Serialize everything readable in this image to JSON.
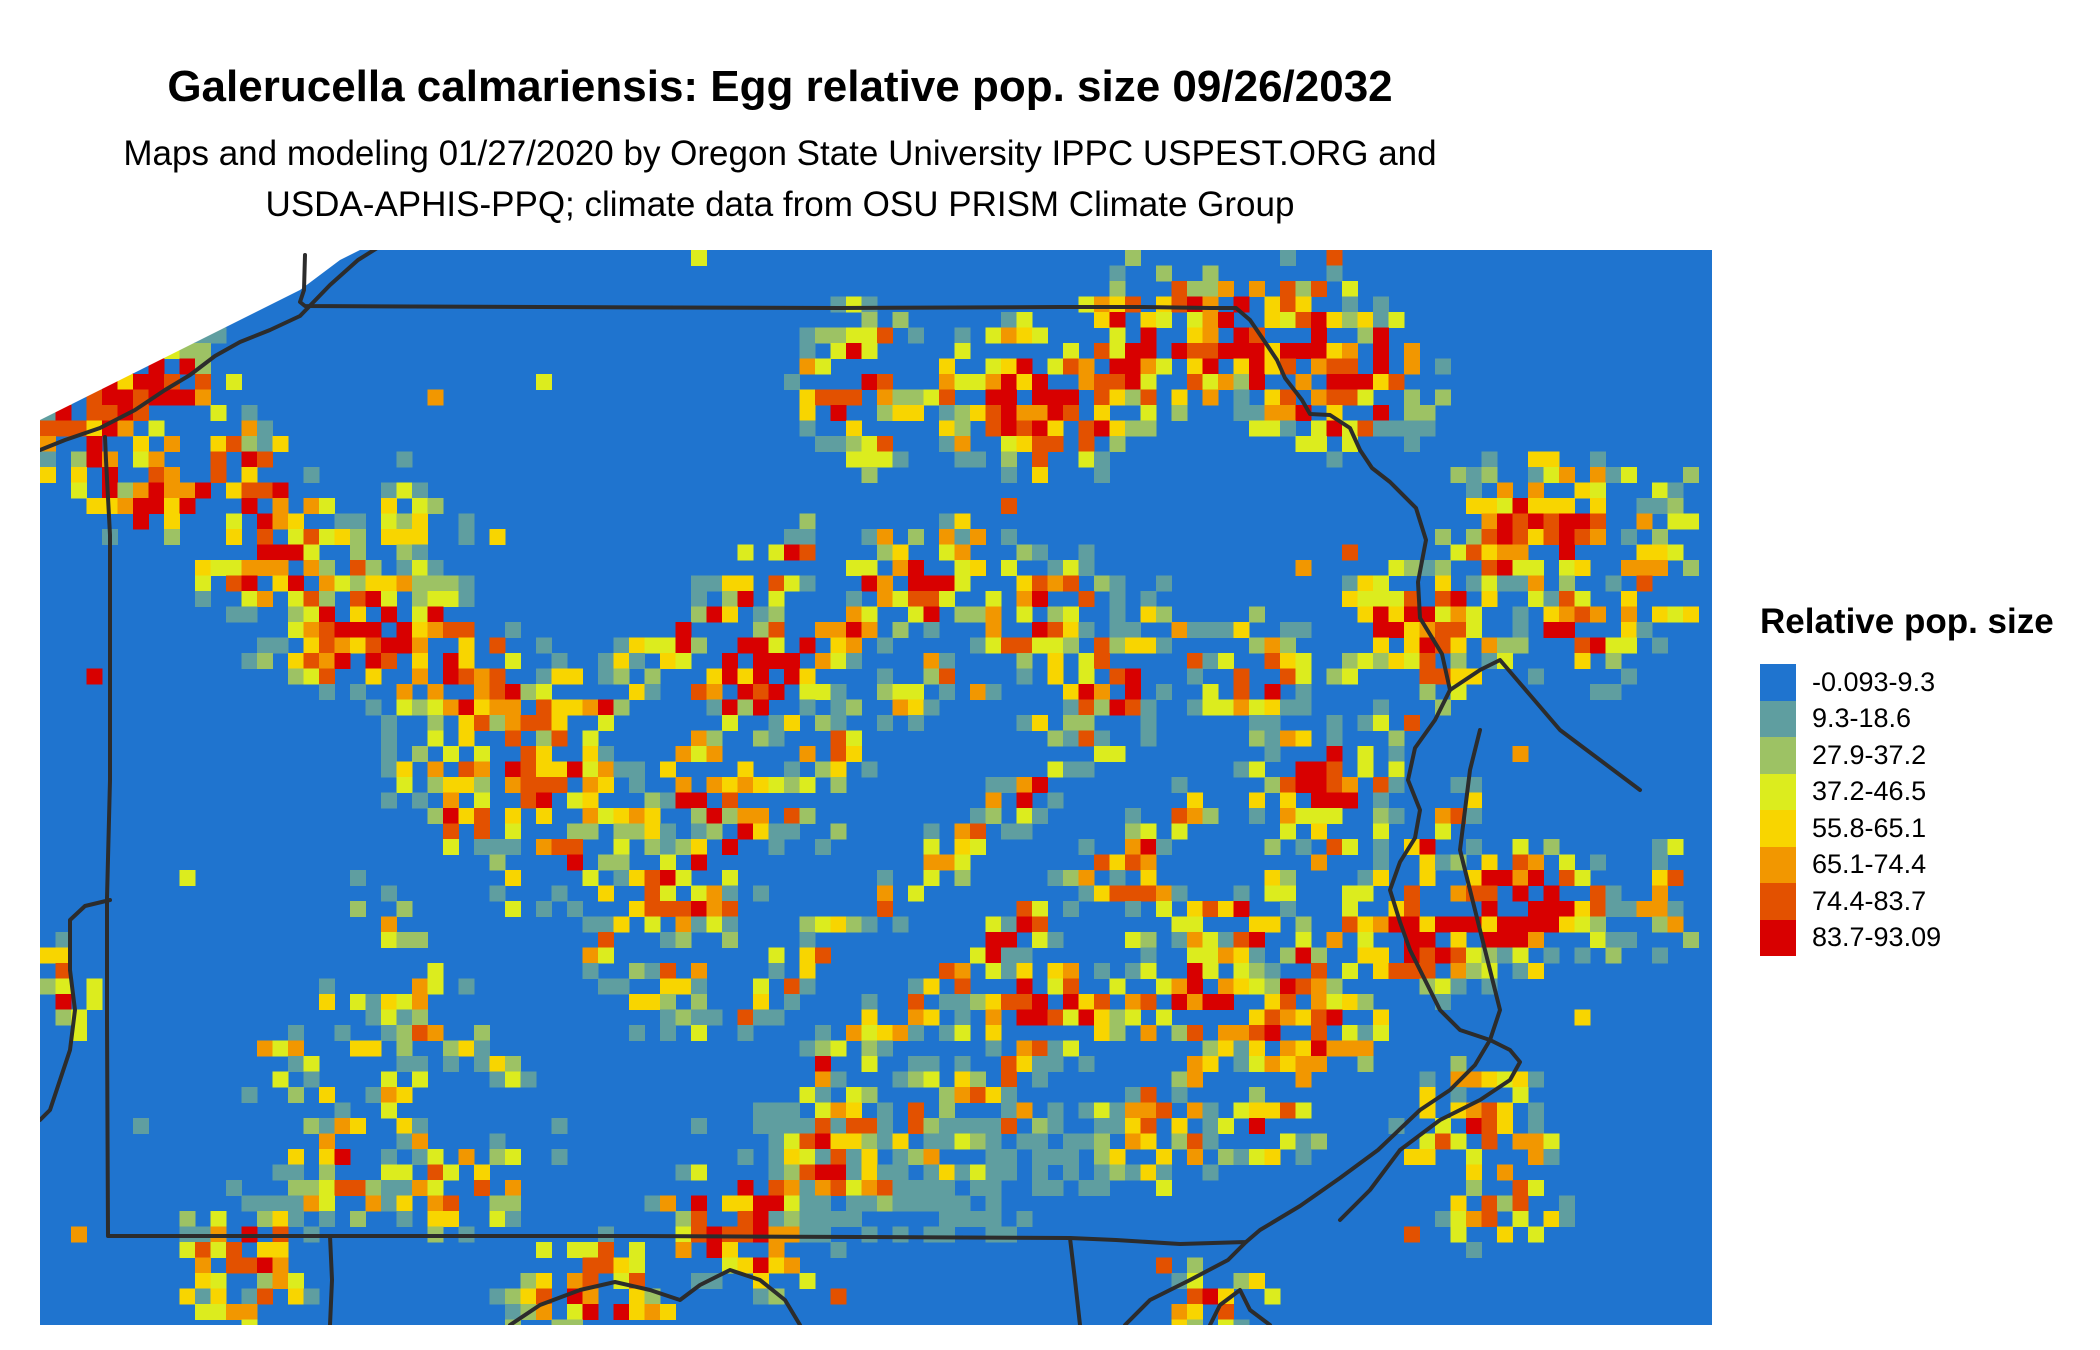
{
  "title": "Galerucella calmariensis: Egg relative pop. size 09/26/2032",
  "subtitle_lines": [
    "Maps and modeling 01/27/2020 by Oregon State University IPPC USPEST.ORG and",
    "USDA-APHIS-PPQ; climate data from OSU PRISM Climate Group"
  ],
  "legend": {
    "title": "Relative pop. size",
    "classes": [
      {
        "label": "-0.093-9.3",
        "color": "#1f74cf"
      },
      {
        "label": "9.3-18.6",
        "color": "#5f9ea0"
      },
      {
        "label": "27.9-37.2",
        "color": "#9dc264"
      },
      {
        "label": "37.2-46.5",
        "color": "#dcec1e"
      },
      {
        "label": "55.8-65.1",
        "color": "#f8d500"
      },
      {
        "label": "65.1-74.4",
        "color": "#f29700"
      },
      {
        "label": "74.4-83.7",
        "color": "#e35100"
      },
      {
        "label": "83.7-93.09",
        "color": "#d80000"
      }
    ]
  },
  "map": {
    "background_color": "#1f74cf",
    "boundary_color": "#2c2c2c"
  }
}
